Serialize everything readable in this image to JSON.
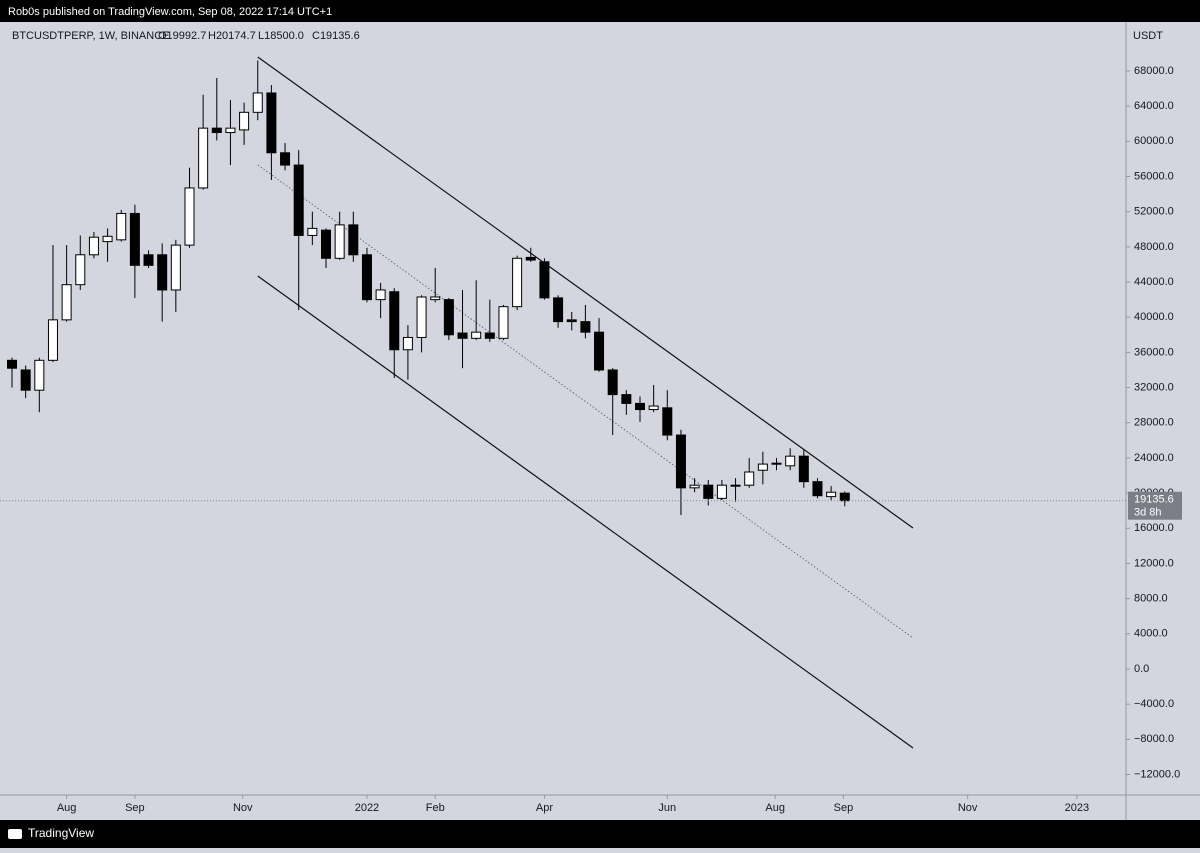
{
  "header": {
    "published": "Rob0s published on TradingView.com, Sep 08, 2022 17:14 UTC+1"
  },
  "footer": {
    "brand": "TradingView"
  },
  "chart_data": {
    "type": "candlestick",
    "symbol": "BTCUSDTPERP, 1W, BINANCE",
    "ohlc_labels": [
      "O19992.7",
      "H20174.7",
      "L18500.0",
      "C19135.6"
    ],
    "currency": "USDT",
    "countdown": "3d 8h",
    "categories": [
      null,
      null,
      null,
      null,
      null,
      null,
      null,
      null,
      null,
      null,
      null,
      null,
      null,
      null,
      null,
      null,
      null,
      null,
      null,
      null,
      null,
      null,
      null,
      null,
      null,
      null,
      null,
      null,
      null,
      null,
      null,
      null,
      null,
      null,
      null,
      null,
      null,
      null,
      null,
      null,
      null,
      null,
      null,
      null,
      null,
      null,
      null,
      null,
      null,
      null,
      null,
      null,
      null,
      null,
      null,
      null,
      null,
      null,
      null,
      null,
      null,
      null
    ],
    "open": [
      35100,
      34000,
      31700,
      35100,
      39700,
      43700,
      47100,
      48600,
      48800,
      51800,
      47100,
      47100,
      43100,
      48200,
      54700,
      61500,
      61000,
      61300,
      63300,
      65500,
      58700,
      57300,
      49300,
      49900,
      46700,
      50500,
      47100,
      42000,
      42900,
      36300,
      37700,
      42000,
      42000,
      38200,
      37600,
      38200,
      37600,
      41200,
      46800,
      46300,
      42200,
      39700,
      39500,
      38300,
      34000,
      31200,
      30200,
      29500,
      29700,
      26600,
      20600,
      20900,
      19400,
      20800,
      20900,
      22600,
      23300,
      23100,
      24200,
      21300,
      19600,
      19992.7
    ],
    "high": [
      35400,
      34500,
      35400,
      48200,
      48200,
      49300,
      49700,
      50100,
      52200,
      52800,
      47600,
      48400,
      48800,
      57000,
      65300,
      67200,
      64700,
      64400,
      69200,
      66400,
      59800,
      59000,
      52000,
      50100,
      52000,
      52000,
      47900,
      43900,
      43300,
      39100,
      42500,
      45600,
      42200,
      43100,
      44200,
      42000,
      41400,
      47000,
      47900,
      46700,
      42500,
      40600,
      41400,
      39900,
      34200,
      31700,
      31000,
      32300,
      31700,
      27200,
      21700,
      21500,
      21500,
      21700,
      24000,
      24700,
      24000,
      25100,
      24900,
      21700,
      20800,
      20174.7
    ],
    "low": [
      32000,
      30800,
      29200,
      34900,
      39500,
      43100,
      46700,
      46300,
      48600,
      42200,
      45600,
      39500,
      40600,
      47900,
      54500,
      60100,
      57300,
      59600,
      62400,
      55600,
      56700,
      40800,
      48200,
      45600,
      46500,
      46300,
      41700,
      39900,
      33100,
      32900,
      36000,
      41700,
      37400,
      34200,
      37400,
      37200,
      37400,
      40800,
      46300,
      42000,
      38800,
      38500,
      37600,
      33800,
      26600,
      28900,
      28100,
      29200,
      26000,
      17500,
      20100,
      18600,
      19200,
      19000,
      20600,
      21000,
      22600,
      22600,
      20600,
      19400,
      19200,
      18500
    ],
    "close": [
      34200,
      31700,
      35100,
      39700,
      43700,
      47100,
      49100,
      49200,
      51800,
      45900,
      45900,
      43100,
      48200,
      54700,
      61500,
      61000,
      61500,
      63300,
      65500,
      58700,
      57300,
      49300,
      50100,
      46700,
      50500,
      47100,
      42000,
      43100,
      36300,
      37700,
      42300,
      42300,
      38000,
      37600,
      38300,
      37600,
      41200,
      46700,
      46500,
      42200,
      39500,
      39500,
      38300,
      34000,
      31200,
      30200,
      29500,
      29900,
      26600,
      20600,
      20900,
      19400,
      20900,
      20900,
      22400,
      23300,
      23400,
      24200,
      21300,
      19700,
      20100,
      19135.6
    ],
    "up_color": "#ffffff",
    "down_color": "#000000",
    "xlim": [
      -0.88,
      81.6
    ],
    "xticks": [
      {
        "value": 4,
        "label": "Aug"
      },
      {
        "value": 9,
        "label": "Sep"
      },
      {
        "value": 16.9,
        "label": "Nov"
      },
      {
        "value": 26,
        "label": "2022"
      },
      {
        "value": 31,
        "label": "Feb"
      },
      {
        "value": 39,
        "label": "Apr"
      },
      {
        "value": 48,
        "label": "Jun"
      },
      {
        "value": 55.9,
        "label": "Aug"
      },
      {
        "value": 60.9,
        "label": "Sep"
      },
      {
        "value": 70,
        "label": "Nov"
      },
      {
        "value": 78,
        "label": "2023"
      }
    ],
    "ylim": [
      -14330,
      73570
    ],
    "yticks": [
      {
        "value": 68000,
        "label": "68000.0"
      },
      {
        "value": 64000,
        "label": "64000.0"
      },
      {
        "value": 60000,
        "label": "60000.0"
      },
      {
        "value": 56000,
        "label": "56000.0"
      },
      {
        "value": 52000,
        "label": "52000.0"
      },
      {
        "value": 48000,
        "label": "48000.0"
      },
      {
        "value": 44000,
        "label": "44000.0"
      },
      {
        "value": 40000,
        "label": "40000.0"
      },
      {
        "value": 36000,
        "label": "36000.0"
      },
      {
        "value": 32000,
        "label": "32000.0"
      },
      {
        "value": 28000,
        "label": "28000.0"
      },
      {
        "value": 24000,
        "label": "24000.0"
      },
      {
        "value": 20000,
        "label": "20000.0"
      },
      {
        "value": 16000,
        "label": "16000.0"
      },
      {
        "value": 12000,
        "label": "12000.0"
      },
      {
        "value": 8000,
        "label": "8000.0"
      },
      {
        "value": 4000,
        "label": "4000.0"
      },
      {
        "value": 0,
        "label": "0.0"
      },
      {
        "value": -4000,
        "label": "−4000.0"
      },
      {
        "value": -8000,
        "label": "−8000.0"
      },
      {
        "value": -12000,
        "label": "−12000.0"
      }
    ],
    "trendlines": [
      {
        "x": [
          18,
          66
        ],
        "y": [
          69593,
          16034
        ],
        "style": "solid"
      },
      {
        "x": [
          18,
          66
        ],
        "y": [
          57311,
          3525
        ],
        "style": "dotted"
      },
      {
        "x": [
          18,
          66
        ],
        "y": [
          44690,
          -8983
        ],
        "style": "solid"
      }
    ]
  }
}
